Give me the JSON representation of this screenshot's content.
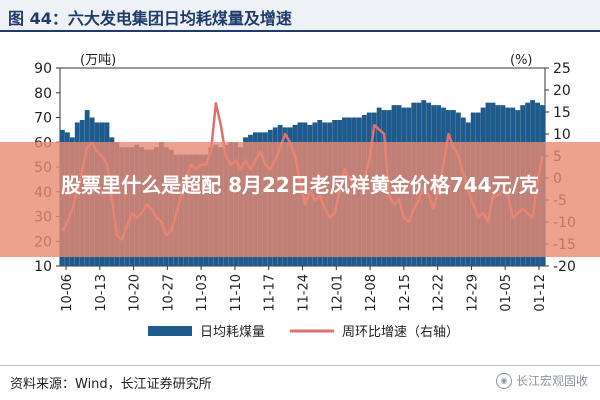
{
  "title": "图 44：六大发电集团日均耗煤量及增速",
  "overlay_text": "股票里什么是超配 8月22日老凤祥黄金价格744元/克",
  "source": "资料来源：Wind，长江证券研究所",
  "watermark": "长江宏观固收",
  "colors": {
    "bar": "#1f5a8c",
    "line": "#e07070",
    "title": "#1f3a6b",
    "overlay": "#e88a73"
  },
  "chart_data": {
    "type": "bar+line",
    "left_axis": {
      "unit": "(万吨)",
      "ylim": [
        10,
        90
      ],
      "ticks": [
        10,
        20,
        30,
        40,
        50,
        60,
        70,
        80,
        90
      ]
    },
    "right_axis": {
      "unit": "(%)",
      "ylim": [
        -20,
        25
      ],
      "ticks": [
        -20,
        -15,
        -10,
        -5,
        0,
        5,
        10,
        15,
        20,
        25
      ]
    },
    "x_tick_labels": [
      "10-06",
      "10-13",
      "10-20",
      "10-27",
      "11-03",
      "11-10",
      "11-17",
      "11-24",
      "12-01",
      "12-08",
      "12-15",
      "12-22",
      "12-29",
      "01-05",
      "01-12"
    ],
    "x_count": 98,
    "series": [
      {
        "name": "日均耗煤量",
        "axis": "left",
        "type": "bar",
        "values": [
          65,
          64,
          62,
          68,
          69,
          73,
          70,
          68,
          68,
          68,
          62,
          60,
          58,
          58,
          58,
          59,
          58,
          57,
          57,
          58,
          60,
          58,
          57,
          55,
          55,
          55,
          55,
          55,
          55,
          55,
          58,
          59,
          58,
          59,
          60,
          60,
          58,
          62,
          63,
          64,
          64,
          64,
          65,
          66,
          67,
          66,
          66,
          67,
          68,
          68,
          67,
          68,
          69,
          68,
          68,
          69,
          69,
          70,
          70,
          70,
          70,
          71,
          72,
          72,
          74,
          73,
          73,
          75,
          75,
          74,
          74,
          76,
          76,
          77,
          76,
          75,
          75,
          74,
          73,
          73,
          72,
          70,
          68,
          72,
          72,
          74,
          76,
          76,
          75,
          75,
          74,
          74,
          73,
          75,
          76,
          77,
          76,
          75
        ]
      },
      {
        "name": "周环比增速（右轴）",
        "axis": "right",
        "type": "line",
        "values": [
          -12,
          -10,
          -7,
          -3,
          2,
          7,
          8,
          6,
          5,
          3,
          -5,
          -13,
          -14,
          -11,
          -8,
          -9,
          -8,
          -6,
          -7,
          -9,
          -10,
          -13,
          -12,
          -8,
          -4,
          0,
          3,
          2,
          3,
          3,
          6,
          17,
          12,
          5,
          3,
          4,
          2,
          4,
          2,
          4,
          6,
          3,
          2,
          4,
          7,
          10,
          8,
          5,
          -1,
          -6,
          -3,
          -5,
          -4,
          -7,
          -9,
          -8,
          -3,
          2,
          0,
          -2,
          -1,
          0,
          4,
          12,
          11,
          10,
          -4,
          -6,
          -5,
          -9,
          -10,
          -7,
          -5,
          -2,
          -4,
          -7,
          -2,
          3,
          10,
          7,
          5,
          1,
          -3,
          -6,
          -9,
          -8,
          -10,
          -4,
          -4,
          -3,
          -4,
          -9,
          -8,
          -7,
          -8,
          -9,
          -1,
          5
        ]
      }
    ]
  }
}
